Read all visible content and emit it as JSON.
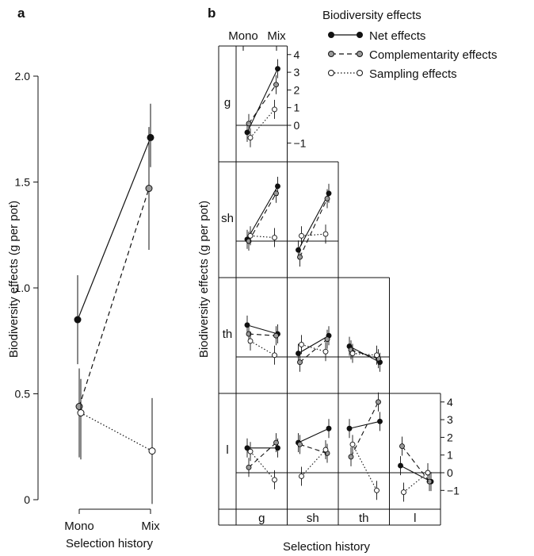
{
  "figure": {
    "panel_a_letter": "a",
    "panel_b_letter": "b"
  },
  "legend": {
    "title": "Biodiversity effects",
    "items": [
      {
        "label": "Net effects",
        "style": "solid",
        "fill": "#111111"
      },
      {
        "label": "Complementarity effects",
        "style": "dashed",
        "fill": "#9a9a9a"
      },
      {
        "label": "Sampling effects",
        "style": "dotted",
        "fill": "#ffffff"
      }
    ]
  },
  "chart_data": [
    {
      "type": "line",
      "panel": "a",
      "categories": [
        "Mono",
        "Mix"
      ],
      "xlabel": "Selection history",
      "ylabel": "Biodiversity effects (g per pot)",
      "ylim": [
        0,
        2.0
      ],
      "yticks": [
        "0",
        "0.5",
        "1.0",
        "1.5",
        "2.0"
      ],
      "series": [
        {
          "name": "Net effects",
          "values": [
            0.85,
            1.71
          ],
          "err": [
            [
              0.64,
              1.06
            ],
            [
              1.57,
              1.87
            ]
          ]
        },
        {
          "name": "Complementarity effects",
          "values": [
            0.44,
            1.47
          ],
          "err": [
            [
              0.2,
              0.62
            ],
            [
              1.18,
              1.76
            ]
          ]
        },
        {
          "name": "Sampling effects",
          "values": [
            0.41,
            0.23
          ],
          "err": [
            [
              0.19,
              0.57
            ],
            [
              -0.02,
              0.48
            ]
          ]
        }
      ]
    },
    {
      "type": "line",
      "panel": "b",
      "xlabel": "Selection history",
      "ylabel": "Biodiversity effects (g per pot)",
      "row_labels": [
        "g",
        "sh",
        "th",
        "l"
      ],
      "col_labels": [
        "g",
        "sh",
        "th",
        "l"
      ],
      "inner_categories": [
        "Mono",
        "Mix"
      ],
      "yticks_top": [
        "4",
        "3",
        "2",
        "1",
        "0",
        "−1"
      ],
      "yticks_bottom": [
        "4",
        "3",
        "2",
        "1",
        "0",
        "−1"
      ],
      "ylim": [
        -1.7,
        4.4
      ],
      "cells": [
        {
          "row": "g",
          "col": "g",
          "net": [
            -0.4,
            3.2
          ],
          "comp": [
            0.1,
            2.3
          ],
          "samp": [
            -0.7,
            0.9
          ]
        },
        {
          "row": "sh",
          "col": "g",
          "net": [
            0.1,
            3.1
          ],
          "comp": [
            0.0,
            2.7
          ],
          "samp": [
            0.3,
            0.2
          ]
        },
        {
          "row": "sh",
          "col": "sh",
          "net": [
            -0.5,
            2.7
          ],
          "comp": [
            -0.9,
            2.4
          ],
          "samp": [
            0.3,
            0.4
          ]
        },
        {
          "row": "th",
          "col": "g",
          "net": [
            1.8,
            1.3
          ],
          "comp": [
            1.3,
            1.2
          ],
          "samp": [
            0.9,
            0.1
          ]
        },
        {
          "row": "th",
          "col": "sh",
          "net": [
            0.2,
            1.2
          ],
          "comp": [
            -0.3,
            1.0
          ],
          "samp": [
            0.7,
            0.3
          ]
        },
        {
          "row": "th",
          "col": "th",
          "net": [
            0.6,
            -0.3
          ],
          "comp": [
            0.4,
            -0.1
          ],
          "samp": [
            0.2,
            0.1
          ]
        },
        {
          "row": "l",
          "col": "g",
          "net": [
            1.4,
            1.4
          ],
          "comp": [
            0.3,
            1.7
          ],
          "samp": [
            1.2,
            -0.4
          ]
        },
        {
          "row": "l",
          "col": "sh",
          "net": [
            1.7,
            2.5
          ],
          "comp": [
            1.6,
            1.1
          ],
          "samp": [
            -0.2,
            1.3
          ]
        },
        {
          "row": "l",
          "col": "th",
          "net": [
            2.5,
            2.9
          ],
          "comp": [
            0.9,
            4.0
          ],
          "samp": [
            1.6,
            -1.0
          ]
        },
        {
          "row": "l",
          "col": "l",
          "net": [
            0.4,
            -0.5
          ],
          "comp": [
            1.5,
            -0.5
          ],
          "samp": [
            -1.1,
            0.0
          ]
        }
      ]
    }
  ]
}
